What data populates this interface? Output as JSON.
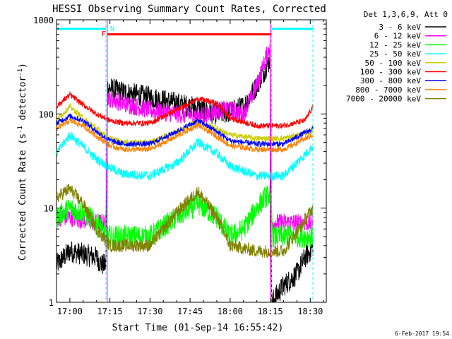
{
  "chart_data": {
    "type": "line",
    "title": "HESSI Observing Summary Count Rates, Corrected",
    "xlabel": "Start Time (01-Sep-14 16:55:42)",
    "ylabel_main": "Corrected Count Rate (s",
    "ylabel_sup1": "-1",
    "ylabel_mid": " detector",
    "ylabel_sup2": "-1",
    "ylabel_end": ")",
    "y_scale": "log",
    "ylim": [
      1,
      1000
    ],
    "xlim_minutes": [
      -4.3,
      35.5
    ],
    "x_origin_label": "17:00",
    "x_ticks": [
      {
        "minute": 0,
        "label": "17:00"
      },
      {
        "minute": 15,
        "label": "17:15"
      },
      {
        "minute": 30,
        "label": "17:30"
      },
      {
        "minute": 45,
        "label": "17:45"
      },
      {
        "minute": 60,
        "label": "18:00"
      },
      {
        "minute": 75,
        "label": "18:15"
      },
      {
        "minute": 90,
        "label": "18:30"
      }
    ],
    "y_ticks": [
      {
        "value": 1,
        "label": "1"
      },
      {
        "value": 10,
        "label": "10"
      },
      {
        "value": 100,
        "label": "100"
      },
      {
        "value": 1000,
        "label": "1000"
      }
    ],
    "legend_title": "Det 1,3,6,9, Att 0",
    "legend_position": "top-right",
    "series": [
      {
        "name": "3 - 6 keV",
        "color": "#000000",
        "x": [
          -5,
          0,
          10,
          12,
          13.5,
          14,
          20,
          30,
          40,
          50,
          55,
          60,
          65,
          70,
          75,
          75.5,
          80,
          85,
          88,
          90,
          91
        ],
        "y": [
          2.5,
          3.5,
          3,
          2.5,
          2.5,
          190,
          170,
          150,
          130,
          110,
          100,
          105,
          120,
          200,
          380,
          1,
          1.5,
          2,
          3,
          3.5,
          4
        ]
      },
      {
        "name": "6 - 12 keV",
        "color": "#ff00ff",
        "x": [
          -5,
          0,
          10,
          13.5,
          14,
          20,
          30,
          40,
          50,
          55,
          60,
          65,
          70,
          75,
          75.5,
          80,
          85,
          91
        ],
        "y": [
          8,
          8,
          7,
          7,
          150,
          130,
          110,
          100,
          95,
          110,
          110,
          100,
          200,
          550,
          7,
          7,
          7,
          7
        ]
      },
      {
        "name": "12 - 25 keV",
        "color": "#00ff00",
        "x": [
          -5,
          0,
          5,
          10,
          13.5,
          20,
          30,
          40,
          48,
          55,
          60,
          65,
          70,
          73,
          75,
          76,
          80,
          85,
          91
        ],
        "y": [
          8,
          10,
          9,
          7,
          5,
          5,
          5,
          8,
          11,
          8,
          5,
          6,
          10,
          13,
          14,
          5,
          5,
          5,
          5
        ]
      },
      {
        "name": "25 - 50 keV",
        "color": "#00ffff",
        "x": [
          -5,
          0,
          5,
          10,
          15,
          20,
          30,
          40,
          48,
          55,
          60,
          70,
          80,
          91
        ],
        "y": [
          38,
          60,
          45,
          33,
          27,
          23,
          22,
          30,
          50,
          38,
          28,
          22,
          22,
          45
        ]
      },
      {
        "name": "50 - 100 keV",
        "color": "#cccc00",
        "x": [
          -5,
          0,
          5,
          10,
          15,
          20,
          30,
          40,
          48,
          55,
          60,
          70,
          80,
          91
        ],
        "y": [
          85,
          120,
          90,
          70,
          55,
          50,
          50,
          65,
          85,
          70,
          60,
          55,
          55,
          65
        ]
      },
      {
        "name": "100 - 300 keV",
        "color": "#ff0000",
        "x": [
          -5,
          0,
          5,
          10,
          15,
          20,
          30,
          40,
          48,
          55,
          60,
          70,
          80,
          88,
          91
        ],
        "y": [
          120,
          160,
          125,
          100,
          85,
          80,
          80,
          110,
          145,
          130,
          90,
          75,
          75,
          85,
          120
        ]
      },
      {
        "name": "300 - 800 keV",
        "color": "#0000ff",
        "x": [
          -5,
          0,
          5,
          10,
          15,
          20,
          30,
          40,
          48,
          55,
          60,
          70,
          80,
          91
        ],
        "y": [
          80,
          95,
          85,
          65,
          52,
          48,
          48,
          65,
          85,
          65,
          52,
          48,
          48,
          70
        ]
      },
      {
        "name": "800 - 7000 keV",
        "color": "#ff8000",
        "x": [
          -5,
          0,
          5,
          10,
          15,
          20,
          30,
          40,
          48,
          55,
          60,
          70,
          80,
          91
        ],
        "y": [
          70,
          85,
          75,
          58,
          46,
          42,
          42,
          58,
          76,
          58,
          46,
          42,
          42,
          60
        ]
      },
      {
        "name": "7000 - 20000 keV",
        "color": "#808000",
        "x": [
          -5,
          0,
          5,
          10,
          15,
          20,
          30,
          40,
          48,
          55,
          60,
          70,
          80,
          91
        ],
        "y": [
          13,
          16,
          11,
          6,
          4,
          4,
          4,
          9,
          15,
          8,
          4,
          3.5,
          3.5,
          10
        ]
      }
    ],
    "annotations": [
      {
        "label": "F",
        "color": "#ff0000"
      },
      {
        "label": "N",
        "color": "#00ffff"
      }
    ],
    "bars": [
      {
        "color": "#00ffff",
        "x": [
          -5,
          13.5
        ],
        "y": 800
      },
      {
        "color": "#ff0000",
        "x": [
          14,
          75.5
        ],
        "y": 700
      },
      {
        "color": "#00ffff",
        "x": [
          75.5,
          91
        ],
        "y": 800
      }
    ],
    "vlines": [
      {
        "color": "#00ffff",
        "style": "dashed",
        "x": 13.5
      },
      {
        "color": "#ff00ff",
        "style": "solid",
        "x": 14
      },
      {
        "color": "#ff00ff",
        "style": "solid",
        "x": 75
      },
      {
        "color": "#00ffff",
        "style": "dashed",
        "x": 75.5
      },
      {
        "color": "#00ffff",
        "style": "dashed",
        "x": 91
      }
    ]
  },
  "footer_date": "6-Feb-2017 19:54"
}
